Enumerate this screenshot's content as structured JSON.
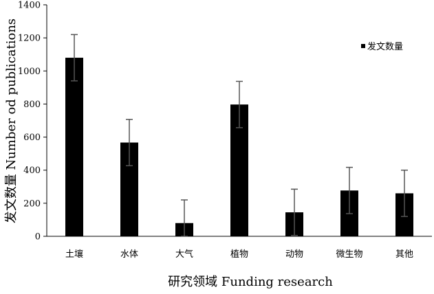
{
  "chart_data": {
    "type": "bar",
    "categories": [
      "土壤",
      "水体",
      "大气",
      "植物",
      "动物",
      "微生物",
      "其他"
    ],
    "series": [
      {
        "name": "发文数量",
        "values": [
          1080,
          567,
          80,
          797,
          145,
          277,
          260
        ],
        "error": [
          140,
          140,
          140,
          140,
          140,
          140,
          140
        ]
      }
    ],
    "xlabel": "研究领域  Funding research",
    "ylabel": "发文数量  Number od publications",
    "ylim": [
      0,
      1400
    ],
    "yticks": [
      0,
      200,
      400,
      600,
      800,
      1000,
      1200,
      1400
    ],
    "grid": false,
    "legend": "top-right",
    "colors": {
      "bar": "#000000",
      "error_bar": "#555555",
      "axis": "#000000"
    }
  }
}
